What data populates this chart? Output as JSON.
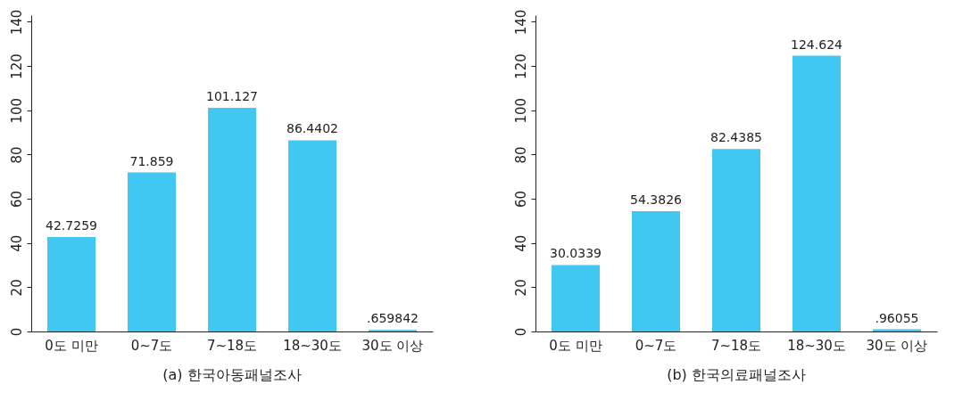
{
  "chart_data": [
    {
      "type": "bar",
      "title": "(a) 한국아동패널조사",
      "categories": [
        "0도 미만",
        "0~7도",
        "7~18도",
        "18~30도",
        "30도 이상"
      ],
      "values": [
        42.7259,
        71.859,
        101.127,
        86.4402,
        0.659842
      ],
      "value_labels": [
        "42.7259",
        "71.859",
        "101.127",
        "86.4402",
        ".659842"
      ],
      "color": "#40c7f2",
      "ylim": [
        0,
        143
      ],
      "yticks": [
        0,
        20,
        40,
        60,
        80,
        100,
        120,
        140
      ],
      "grid": false
    },
    {
      "type": "bar",
      "title": "(b) 한국의료패널조사",
      "categories": [
        "0도 미만",
        "0~7도",
        "7~18도",
        "18~30도",
        "30도 이상"
      ],
      "values": [
        30.0339,
        54.3826,
        82.4385,
        124.624,
        0.96055
      ],
      "value_labels": [
        "30.0339",
        "54.3826",
        "82.4385",
        "124.624",
        ".96055"
      ],
      "color": "#40c7f2",
      "ylim": [
        0,
        143
      ],
      "yticks": [
        0,
        20,
        40,
        60,
        80,
        100,
        120,
        140
      ],
      "grid": false
    }
  ]
}
